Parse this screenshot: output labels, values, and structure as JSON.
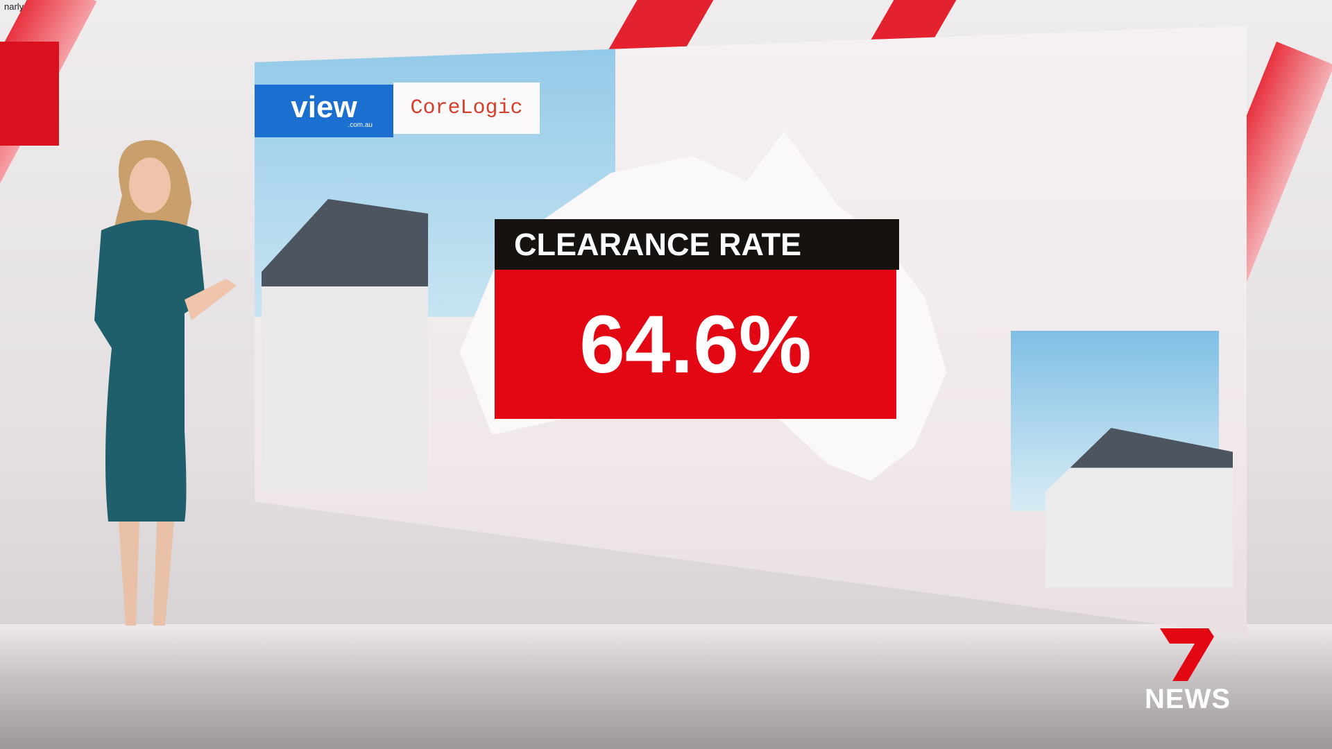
{
  "caption": "narly",
  "sponsors": {
    "view_logo": "view",
    "view_domain": ".com.au",
    "corelogic_logo": "CoreLogic"
  },
  "graphic": {
    "title": "CLEARANCE RATE",
    "value": "64.6%"
  },
  "broadcaster": {
    "logo_number": "7",
    "logo_text": "NEWS"
  },
  "colors": {
    "brand_red": "#e30613",
    "header_black": "#15120f",
    "view_blue": "#1b6fd0",
    "corelogic_orange": "#d43e2a",
    "dress_teal": "#1e5f6b"
  }
}
